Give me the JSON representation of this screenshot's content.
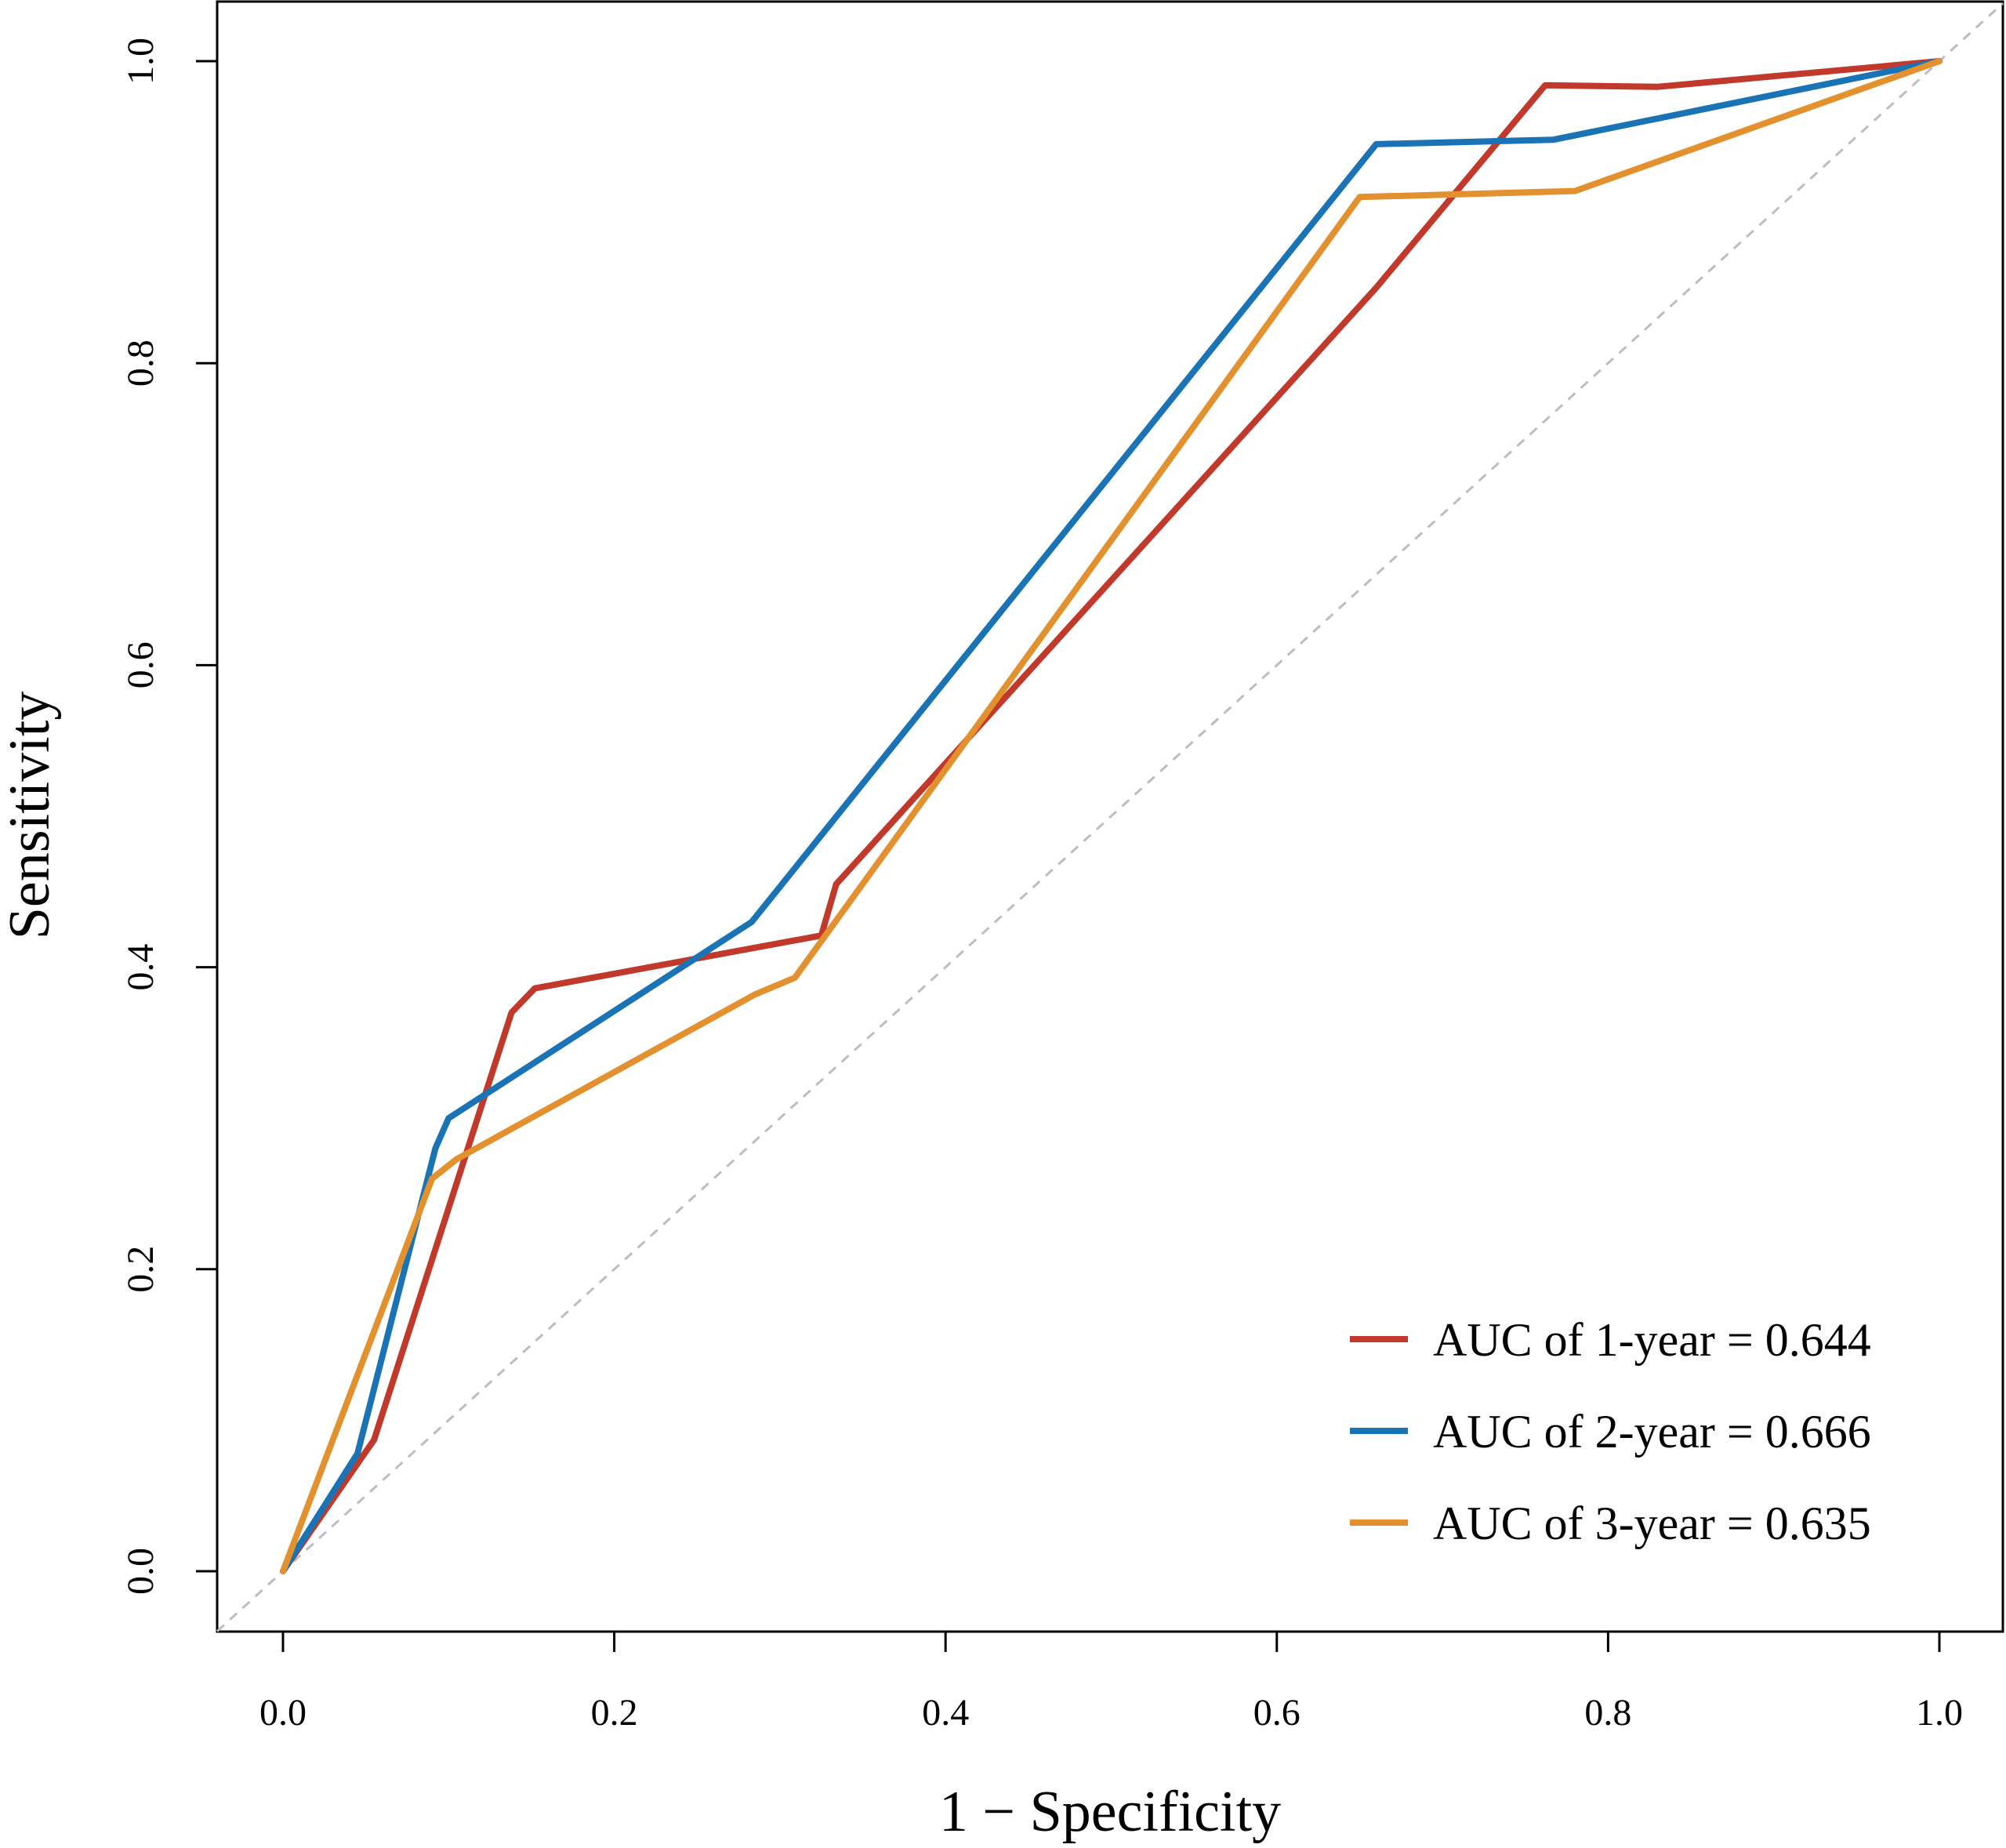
{
  "chart_data": {
    "type": "line",
    "title": "",
    "xlabel": "1 − Specificity",
    "ylabel": "Sensitivity",
    "xlim": [
      0,
      1
    ],
    "ylim": [
      0,
      1
    ],
    "x_ticks": [
      "0.0",
      "0.2",
      "0.4",
      "0.6",
      "0.8",
      "1.0"
    ],
    "y_ticks": [
      "0.0",
      "0.2",
      "0.4",
      "0.6",
      "0.8",
      "1.0"
    ],
    "grid": false,
    "legend_position": "bottom-right",
    "reference_line": {
      "style": "dashed",
      "color": "#BDBDBD",
      "x": [
        0,
        1
      ],
      "y": [
        0,
        1
      ]
    },
    "series": [
      {
        "name": "AUC of 1-year = 0.644",
        "color": "#C0392B",
        "x": [
          0,
          0.055,
          0.138,
          0.152,
          0.325,
          0.334,
          0.66,
          0.762,
          0.83,
          1.0
        ],
        "y": [
          0,
          0.087,
          0.37,
          0.386,
          0.421,
          0.455,
          0.85,
          0.984,
          0.983,
          1.0
        ]
      },
      {
        "name": "AUC of 2-year = 0.666",
        "color": "#1A73B5",
        "x": [
          0,
          0.045,
          0.092,
          0.1,
          0.283,
          0.66,
          0.767,
          1.0
        ],
        "y": [
          0,
          0.078,
          0.28,
          0.3,
          0.43,
          0.945,
          0.948,
          1.0
        ]
      },
      {
        "name": "AUC of 3-year = 0.635",
        "color": "#E3912F",
        "x": [
          0,
          0.09,
          0.105,
          0.285,
          0.309,
          0.65,
          0.78,
          1.0
        ],
        "y": [
          0,
          0.26,
          0.273,
          0.382,
          0.393,
          0.91,
          0.914,
          1.0
        ]
      }
    ]
  }
}
